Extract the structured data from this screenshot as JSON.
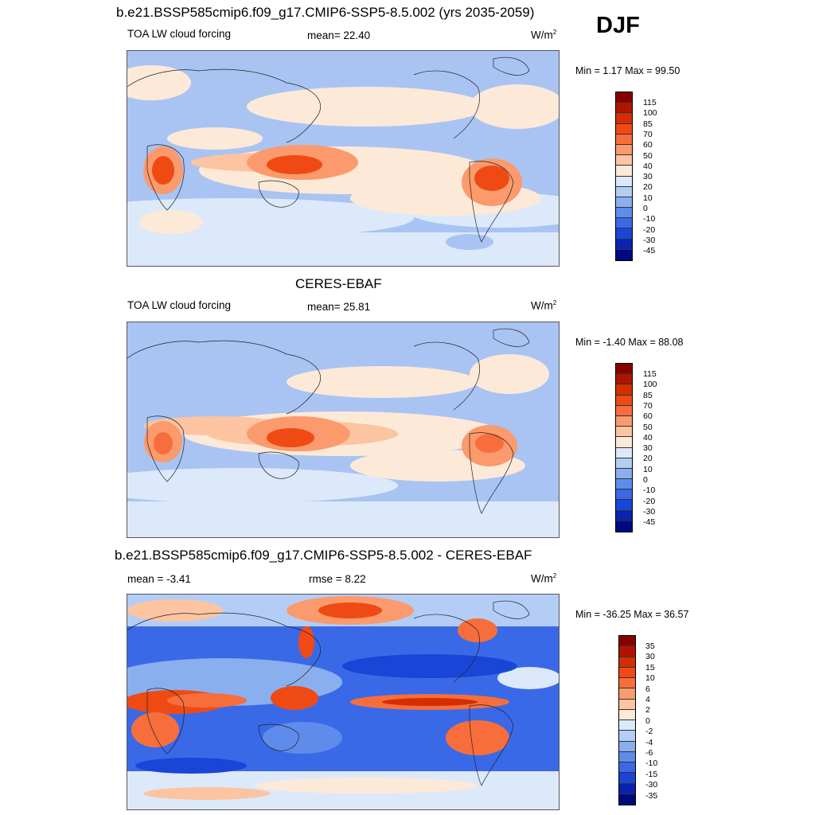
{
  "figure": {
    "season": "DJF"
  },
  "panels": [
    {
      "title": "b.e21.BSSP585cmip6.f09_g17.CMIP6-SSP5-8.5.002 (yrs 2035-2059)",
      "left_label": "TOA LW cloud forcing",
      "center_label": "mean=  22.40",
      "units": "W/m",
      "units_sup": "2",
      "minmax": "Min =   1.17 Max =  99.50",
      "colorbar": {
        "labels": [
          "115",
          "100",
          "85",
          "70",
          "60",
          "50",
          "40",
          "30",
          "20",
          "10",
          "0",
          "-10",
          "-20",
          "-30",
          "-45"
        ],
        "colors": [
          "#870000",
          "#b01400",
          "#d42e00",
          "#f04a14",
          "#f76e3c",
          "#fb9a6c",
          "#fcc4a0",
          "#fde9d8",
          "#dce9fa",
          "#b4cdf7",
          "#8aafef",
          "#5f8ceb",
          "#3a69e8",
          "#1a45d6",
          "#0a22b0",
          "#000a80"
        ]
      }
    },
    {
      "title": "CERES-EBAF",
      "left_label": "TOA LW cloud forcing",
      "center_label": "mean=  25.81",
      "units": "W/m",
      "units_sup": "2",
      "minmax": "Min =  -1.40 Max =  88.08",
      "colorbar": {
        "labels": [
          "115",
          "100",
          "85",
          "70",
          "60",
          "50",
          "40",
          "30",
          "20",
          "10",
          "0",
          "-10",
          "-20",
          "-30",
          "-45"
        ],
        "colors": [
          "#870000",
          "#b01400",
          "#d42e00",
          "#f04a14",
          "#f76e3c",
          "#fb9a6c",
          "#fcc4a0",
          "#fde9d8",
          "#dce9fa",
          "#b4cdf7",
          "#8aafef",
          "#5f8ceb",
          "#3a69e8",
          "#1a45d6",
          "#0a22b0",
          "#000a80"
        ]
      }
    },
    {
      "title": "b.e21.BSSP585cmip6.f09_g17.CMIP6-SSP5-8.5.002 - CERES-EBAF",
      "left_label": "mean =  -3.41",
      "center_label": "rmse =   8.22",
      "units": "W/m",
      "units_sup": "2",
      "minmax": "Min = -36.25 Max =  36.57",
      "colorbar": {
        "labels": [
          "35",
          "30",
          "15",
          "10",
          "6",
          "4",
          "2",
          "0",
          "-2",
          "-4",
          "-6",
          "-10",
          "-15",
          "-30",
          "-35"
        ],
        "colors": [
          "#870000",
          "#b01400",
          "#d42e00",
          "#f04a14",
          "#f76e3c",
          "#fb9a6c",
          "#fcc4a0",
          "#fde9d8",
          "#dce9fa",
          "#b4cdf7",
          "#8aafef",
          "#5f8ceb",
          "#3a69e8",
          "#1a45d6",
          "#0a22b0",
          "#000a80"
        ]
      }
    }
  ]
}
